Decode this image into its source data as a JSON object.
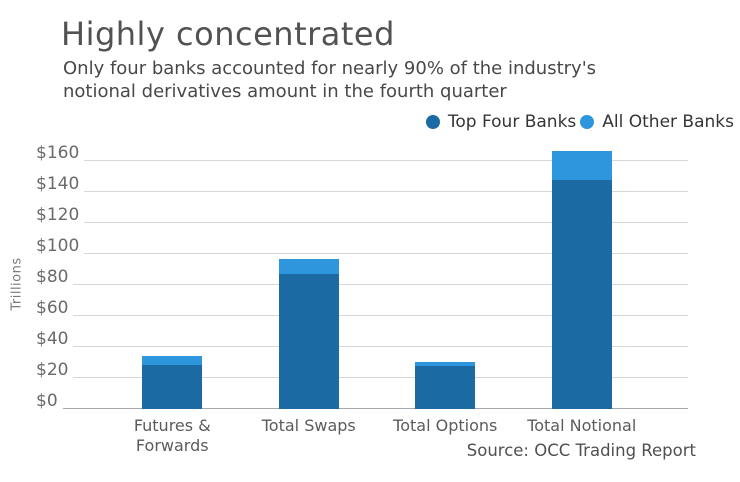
{
  "header": {
    "title": "Highly concentrated",
    "subtitle_line1": "Only four banks accounted for nearly 90% of the industry's",
    "subtitle_line2": "notional derivatives amount in the fourth quarter"
  },
  "source": "Source: OCC Trading Report",
  "chart_data": {
    "type": "bar",
    "stacked": true,
    "title": "Highly concentrated",
    "subtitle": "Only four banks accounted for nearly 90% of the industry's notional derivatives amount in the fourth quarter",
    "categories": [
      "Futures & Forwards",
      "Total Swaps",
      "Total Options",
      "Total Notional"
    ],
    "series": [
      {
        "name": "Top Four Banks",
        "color": "#1c6aa3",
        "values": [
          28.5,
          87,
          28,
          148
        ]
      },
      {
        "name": "All Other Banks",
        "color": "#2d96dd",
        "values": [
          6,
          10,
          2.5,
          18.5
        ]
      }
    ],
    "ylabel": "Trillions",
    "yticks": [
      "$0",
      "$20",
      "$40",
      "$60",
      "$80",
      "$100",
      "$120",
      "$140",
      "$160"
    ],
    "ytick_values": [
      0,
      20,
      40,
      60,
      80,
      100,
      120,
      140,
      160
    ],
    "ylim": [
      0,
      173.5
    ],
    "grid": true,
    "legend_position": "top-right",
    "source": "Source: OCC Trading Report"
  }
}
